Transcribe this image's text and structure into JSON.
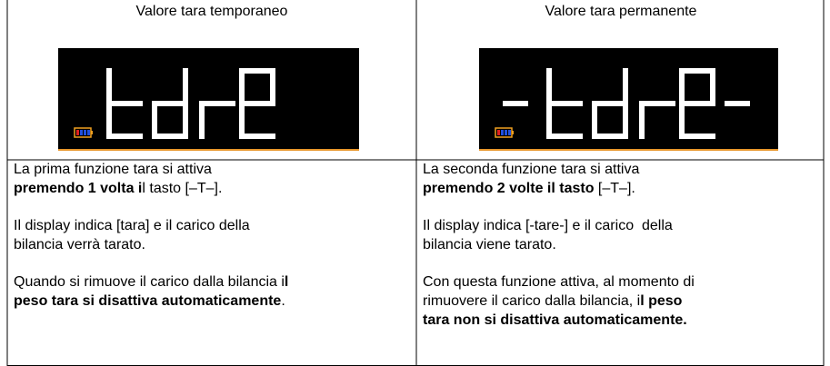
{
  "columns": [
    {
      "header": "Valore tara temporaneo",
      "paragraphs": [
        [
          [
            {
              "text": "La prima funzione tara si attiva",
              "bold": false
            }
          ],
          [
            {
              "text": "premendo 1 volta i",
              "bold": true
            },
            {
              "text": "l tasto [–T–].",
              "bold": false
            }
          ]
        ],
        [
          [
            {
              "text": "Il display indica [tara] e il carico della",
              "bold": false
            }
          ],
          [
            {
              "text": "bilancia verrà tarato.",
              "bold": false
            }
          ]
        ],
        [
          [
            {
              "text": "Quando si rimuove il carico dalla bilancia i",
              "bold": false
            },
            {
              "text": "l",
              "bold": true
            }
          ],
          [
            {
              "text": "peso tara si disattiva automaticamente",
              "bold": true
            },
            {
              "text": ".",
              "bold": false
            }
          ]
        ]
      ]
    },
    {
      "header": "Valore tara permanente",
      "paragraphs": [
        [
          [
            {
              "text": "La seconda funzione tara si attiva",
              "bold": false
            }
          ],
          [
            {
              "text": "premendo 2 volte il tasto",
              "bold": true
            },
            {
              "text": " [–T–].",
              "bold": false
            }
          ]
        ],
        [
          [
            {
              "text": "Il display indica [-tare-] e il carico  della",
              "bold": false
            }
          ],
          [
            {
              "text": "bilancia viene tarato.",
              "bold": false
            }
          ]
        ],
        [
          [
            {
              "text": "Con questa funzione attiva, al momento di",
              "bold": false
            }
          ],
          [
            {
              "text": "rimuovere il carico dalla bilancia, i",
              "bold": false
            },
            {
              "text": "l peso",
              "bold": true
            }
          ],
          [
            {
              "text": "tara non si disattiva automaticamente.",
              "bold": true
            }
          ]
        ]
      ]
    }
  ]
}
